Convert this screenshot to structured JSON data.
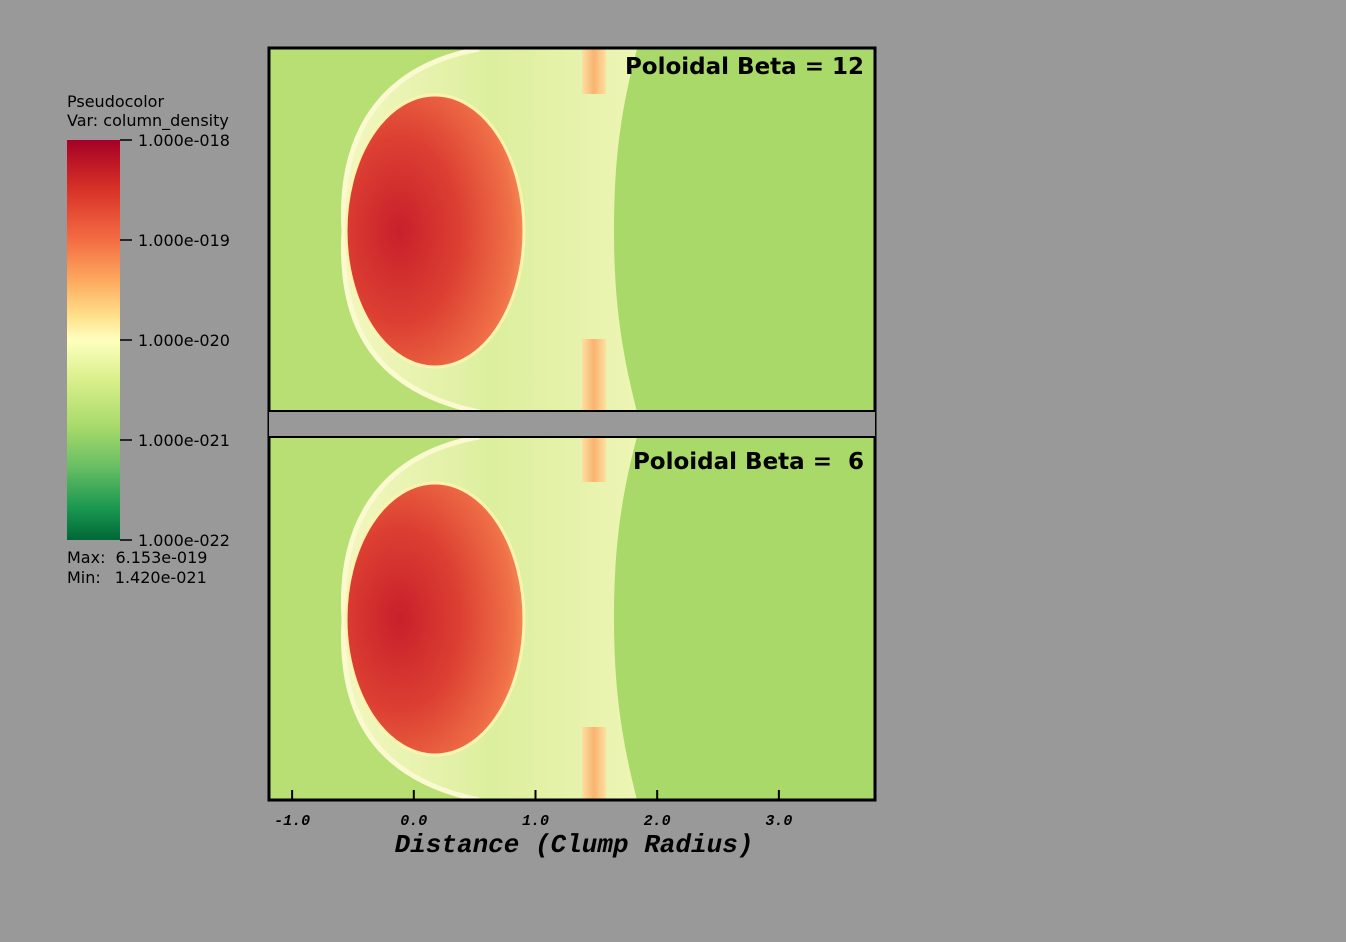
{
  "chart_data": {
    "type": "pseudocolor",
    "colorbar": {
      "title": "Pseudocolor",
      "variable": "Var: column_density",
      "scale": "log",
      "lim": [
        1e-22,
        1e-18
      ],
      "ticks": [
        {
          "value": 1e-18,
          "label": "1.000e-018"
        },
        {
          "value": 1e-19,
          "label": "1.000e-019"
        },
        {
          "value": 1e-20,
          "label": "1.000e-020"
        },
        {
          "value": 1e-21,
          "label": "1.000e-021"
        },
        {
          "value": 1e-22,
          "label": "1.000e-022"
        }
      ],
      "max_caption": "Max:",
      "max": {
        "value": 6.153e-19,
        "label": "6.153e-019"
      },
      "min_caption": "Min:",
      "min": {
        "value": 1.42e-21,
        "label": "1.420e-021"
      }
    },
    "panels": [
      {
        "annotation": "Poloidal Beta = 12"
      },
      {
        "annotation": "Poloidal Beta =  6"
      }
    ],
    "xlabel": "Distance (Clump Radius)",
    "xlim": [
      -1.19,
      3.79
    ],
    "xticks": [
      {
        "value": -1,
        "label": "-1.0"
      },
      {
        "value": 0,
        "label": "0.0"
      },
      {
        "value": 1,
        "label": "1.0"
      },
      {
        "value": 2,
        "label": "2.0"
      },
      {
        "value": 3,
        "label": "3.0"
      }
    ]
  }
}
